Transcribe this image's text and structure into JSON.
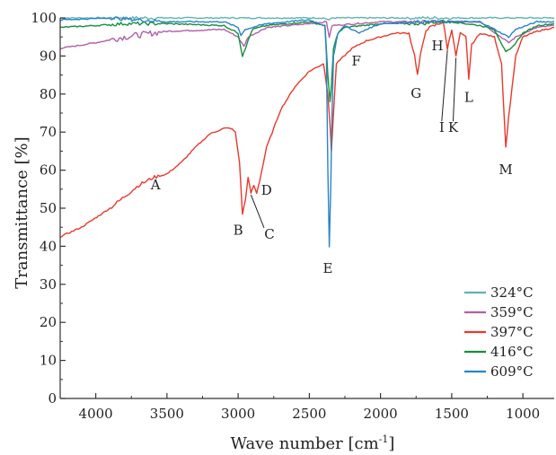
{
  "chart_data": {
    "type": "line",
    "xlabel": "Wave number [cm-1]",
    "xlabel_main": "Wave number [cm",
    "xlabel_sup": "-1",
    "xlabel_end": "]",
    "ylabel": "Transmittance [%]",
    "xlim": [
      4250,
      780
    ],
    "ylim": [
      0,
      100
    ],
    "x_reversed": true,
    "x_ticks": [
      4000,
      3500,
      3000,
      2500,
      2000,
      1500,
      1000
    ],
    "y_ticks": [
      0,
      10,
      20,
      30,
      40,
      50,
      60,
      70,
      80,
      90,
      100
    ],
    "legend_position": "bottom-right",
    "series": [
      {
        "name": "324°C",
        "color": "#5fb3b3",
        "points": [
          [
            4250,
            100
          ],
          [
            3800,
            100
          ],
          [
            3000,
            100
          ],
          [
            2400,
            100
          ],
          [
            2360,
            99.5
          ],
          [
            2340,
            100
          ],
          [
            1500,
            100
          ],
          [
            780,
            100
          ]
        ]
      },
      {
        "name": "359°C",
        "color": "#b15fa8",
        "points": [
          [
            4250,
            92
          ],
          [
            4000,
            93.5
          ],
          [
            3800,
            95
          ],
          [
            3700,
            95.5
          ],
          [
            3500,
            96.5
          ],
          [
            3100,
            97
          ],
          [
            3000,
            95
          ],
          [
            2960,
            92.5
          ],
          [
            2930,
            95
          ],
          [
            2800,
            97.5
          ],
          [
            2500,
            98.5
          ],
          [
            2380,
            99
          ],
          [
            2360,
            95
          ],
          [
            2340,
            98
          ],
          [
            2000,
            99
          ],
          [
            1750,
            99
          ],
          [
            1500,
            99
          ],
          [
            1300,
            99
          ],
          [
            1100,
            93.5
          ],
          [
            1050,
            95
          ],
          [
            900,
            97.5
          ],
          [
            780,
            98
          ]
        ]
      },
      {
        "name": "397°C",
        "color": "#e8392b",
        "points": [
          [
            4250,
            42.5
          ],
          [
            4100,
            45
          ],
          [
            3900,
            50
          ],
          [
            3800,
            53
          ],
          [
            3700,
            56
          ],
          [
            3600,
            58
          ],
          [
            3500,
            59
          ],
          [
            3400,
            62
          ],
          [
            3300,
            66
          ],
          [
            3200,
            69.5
          ],
          [
            3100,
            71
          ],
          [
            3050,
            71
          ],
          [
            3020,
            70
          ],
          [
            2990,
            62
          ],
          [
            2970,
            48.5
          ],
          [
            2950,
            52
          ],
          [
            2930,
            58
          ],
          [
            2910,
            54
          ],
          [
            2890,
            56
          ],
          [
            2870,
            54
          ],
          [
            2850,
            57
          ],
          [
            2800,
            66
          ],
          [
            2700,
            76
          ],
          [
            2600,
            82
          ],
          [
            2500,
            86
          ],
          [
            2400,
            88
          ],
          [
            2370,
            80
          ],
          [
            2355,
            72
          ],
          [
            2345,
            65
          ],
          [
            2330,
            75
          ],
          [
            2310,
            88
          ],
          [
            2200,
            92
          ],
          [
            2100,
            94
          ],
          [
            2000,
            95
          ],
          [
            1900,
            96
          ],
          [
            1800,
            96
          ],
          [
            1760,
            90
          ],
          [
            1740,
            85
          ],
          [
            1720,
            90
          ],
          [
            1680,
            97
          ],
          [
            1620,
            98
          ],
          [
            1560,
            99
          ],
          [
            1530,
            92
          ],
          [
            1500,
            97
          ],
          [
            1470,
            90
          ],
          [
            1440,
            96
          ],
          [
            1400,
            95
          ],
          [
            1380,
            84
          ],
          [
            1360,
            93
          ],
          [
            1300,
            96
          ],
          [
            1200,
            95
          ],
          [
            1150,
            88
          ],
          [
            1120,
            66
          ],
          [
            1100,
            74
          ],
          [
            1050,
            90
          ],
          [
            1000,
            95
          ],
          [
            900,
            96.5
          ],
          [
            780,
            97.5
          ]
        ]
      },
      {
        "name": "416°C",
        "color": "#16903a",
        "points": [
          [
            4250,
            97.5
          ],
          [
            4000,
            98
          ],
          [
            3800,
            98.5
          ],
          [
            3500,
            98.5
          ],
          [
            3100,
            98
          ],
          [
            3000,
            96
          ],
          [
            2970,
            90
          ],
          [
            2950,
            92
          ],
          [
            2930,
            94
          ],
          [
            2900,
            97
          ],
          [
            2800,
            98
          ],
          [
            2500,
            99
          ],
          [
            2390,
            98
          ],
          [
            2370,
            85
          ],
          [
            2355,
            78
          ],
          [
            2345,
            82
          ],
          [
            2330,
            92
          ],
          [
            2300,
            96
          ],
          [
            2250,
            97.5
          ],
          [
            2000,
            98.5
          ],
          [
            1700,
            98.5
          ],
          [
            1600,
            99
          ],
          [
            1500,
            99
          ],
          [
            1300,
            98
          ],
          [
            1200,
            97
          ],
          [
            1120,
            91
          ],
          [
            1080,
            92
          ],
          [
            1000,
            96
          ],
          [
            900,
            98
          ],
          [
            780,
            98.5
          ]
        ]
      },
      {
        "name": "609°C",
        "color": "#2a83c9",
        "points": [
          [
            4250,
            99.5
          ],
          [
            3900,
            100
          ],
          [
            3700,
            99.5
          ],
          [
            3500,
            99
          ],
          [
            3100,
            99
          ],
          [
            3000,
            97.5
          ],
          [
            2980,
            95.5
          ],
          [
            2950,
            97
          ],
          [
            2800,
            98.5
          ],
          [
            2500,
            99.5
          ],
          [
            2390,
            98
          ],
          [
            2380,
            90
          ],
          [
            2370,
            60
          ],
          [
            2360,
            40
          ],
          [
            2350,
            55
          ],
          [
            2340,
            75
          ],
          [
            2330,
            90
          ],
          [
            2300,
            96
          ],
          [
            2250,
            98
          ],
          [
            2150,
            96
          ],
          [
            2100,
            97
          ],
          [
            2000,
            98.5
          ],
          [
            1700,
            99
          ],
          [
            1500,
            99
          ],
          [
            1300,
            99
          ],
          [
            1150,
            96
          ],
          [
            1100,
            95
          ],
          [
            1050,
            97
          ],
          [
            900,
            99
          ],
          [
            780,
            99
          ]
        ]
      }
    ],
    "annotations": [
      {
        "text": "A",
        "x": 3580,
        "y": 57,
        "tx": 3580,
        "ty": 55,
        "pointer": false
      },
      {
        "text": "B",
        "x": 2970,
        "y": 48.5,
        "tx": 3000,
        "ty": 43,
        "pointer": false
      },
      {
        "text": "C",
        "x": 2910,
        "y": 54,
        "tx": 2780,
        "ty": 42,
        "pointer": true
      },
      {
        "text": "D",
        "x": 2870,
        "y": 54,
        "tx": 2800,
        "ty": 53.5,
        "pointer": false
      },
      {
        "text": "E",
        "x": 2360,
        "y": 40,
        "tx": 2370,
        "ty": 33,
        "pointer": false
      },
      {
        "text": "F",
        "x": 2250,
        "y": 92,
        "tx": 2170,
        "ty": 87.5,
        "pointer": false
      },
      {
        "text": "G",
        "x": 1740,
        "y": 85,
        "tx": 1750,
        "ty": 79,
        "pointer": false
      },
      {
        "text": "H",
        "x": 1580,
        "y": 97,
        "tx": 1600,
        "ty": 91.5,
        "pointer": false
      },
      {
        "text": "I",
        "x": 1530,
        "y": 92,
        "tx": 1570,
        "ty": 70,
        "pointer": true
      },
      {
        "text": "K",
        "x": 1470,
        "y": 90,
        "tx": 1490,
        "ty": 70,
        "pointer": true
      },
      {
        "text": "L",
        "x": 1380,
        "y": 84,
        "tx": 1380,
        "ty": 78,
        "pointer": false
      },
      {
        "text": "M",
        "x": 1120,
        "y": 66,
        "tx": 1120,
        "ty": 59,
        "pointer": false
      }
    ]
  }
}
